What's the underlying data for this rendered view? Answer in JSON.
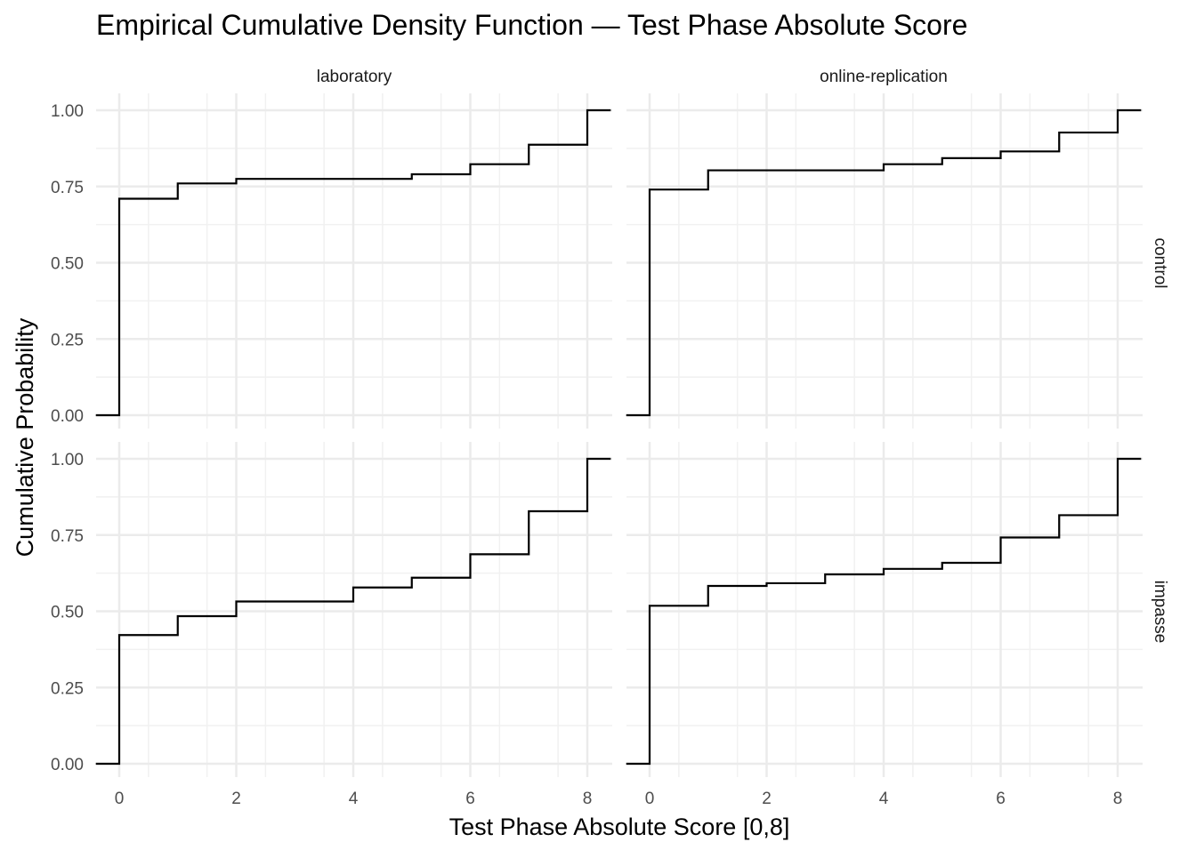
{
  "chart_data": {
    "type": "line",
    "subtype": "ecdf-step-facet-grid",
    "title": "Empirical Cumulative Density Function — Test Phase Absolute Score",
    "xlabel": "Test Phase Absolute Score [0,8]",
    "ylabel": "Cumulative Probability",
    "xlim": [
      -0.4,
      8.4
    ],
    "ylim": [
      0,
      1
    ],
    "x_ticks": [
      0,
      2,
      4,
      6,
      8
    ],
    "x_tick_labels": [
      "0",
      "2",
      "4",
      "6",
      "8"
    ],
    "y_ticks": [
      0,
      0.25,
      0.5,
      0.75,
      1
    ],
    "y_tick_labels": [
      "0.00",
      "0.25",
      "0.50",
      "0.75",
      "1.00"
    ],
    "grid": true,
    "column_facets": [
      "laboratory",
      "online-replication"
    ],
    "row_facets": [
      "control",
      "impasse"
    ],
    "line_color": "#000000",
    "panels": [
      {
        "column": "laboratory",
        "row": "control",
        "x": [
          0,
          1,
          2,
          3,
          4,
          5,
          6,
          7,
          8
        ],
        "y": [
          0.71,
          0.76,
          0.775,
          0.775,
          0.775,
          0.79,
          0.823,
          0.887,
          1.0
        ]
      },
      {
        "column": "online-replication",
        "row": "control",
        "x": [
          0,
          1,
          2,
          3,
          4,
          5,
          6,
          7,
          8
        ],
        "y": [
          0.74,
          0.803,
          0.803,
          0.803,
          0.823,
          0.843,
          0.865,
          0.927,
          1.0
        ]
      },
      {
        "column": "laboratory",
        "row": "impasse",
        "x": [
          0,
          1,
          2,
          3,
          4,
          5,
          6,
          7,
          8
        ],
        "y": [
          0.422,
          0.484,
          0.532,
          0.532,
          0.578,
          0.61,
          0.687,
          0.828,
          1.0
        ]
      },
      {
        "column": "online-replication",
        "row": "impasse",
        "x": [
          0,
          1,
          2,
          3,
          4,
          5,
          6,
          7,
          8
        ],
        "y": [
          0.518,
          0.583,
          0.592,
          0.621,
          0.639,
          0.659,
          0.742,
          0.815,
          1.0
        ]
      }
    ]
  }
}
